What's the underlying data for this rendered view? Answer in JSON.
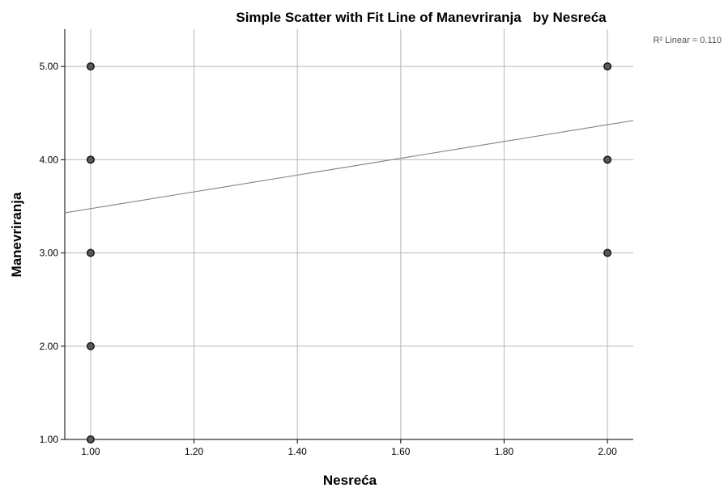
{
  "chart_data": {
    "type": "scatter",
    "title": "Simple Scatter with Fit Line of Manevriranja   by Nesreća",
    "xlabel": "Nesreća",
    "ylabel": "Manevriranja",
    "xlim": [
      0.95,
      2.05
    ],
    "ylim": [
      1.0,
      5.4
    ],
    "x_ticks": [
      1.0,
      1.2,
      1.4,
      1.6,
      1.8,
      2.0
    ],
    "x_tick_labels": [
      "1.00",
      "1.20",
      "1.40",
      "1.60",
      "1.80",
      "2.00"
    ],
    "y_ticks": [
      1.0,
      2.0,
      3.0,
      4.0,
      5.0
    ],
    "y_tick_labels": [
      "1.00",
      "2.00",
      "3.00",
      "4.00",
      "5.00"
    ],
    "grid": true,
    "points": [
      {
        "x": 1.0,
        "y": 5.0
      },
      {
        "x": 1.0,
        "y": 4.0
      },
      {
        "x": 1.0,
        "y": 3.0
      },
      {
        "x": 1.0,
        "y": 2.0
      },
      {
        "x": 1.0,
        "y": 1.0
      },
      {
        "x": 2.0,
        "y": 5.0
      },
      {
        "x": 2.0,
        "y": 4.0
      },
      {
        "x": 2.0,
        "y": 3.0
      }
    ],
    "fit_line": {
      "x": [
        0.95,
        2.05
      ],
      "y": [
        3.43,
        4.42
      ]
    },
    "annotation": "R² Linear = 0.110"
  }
}
